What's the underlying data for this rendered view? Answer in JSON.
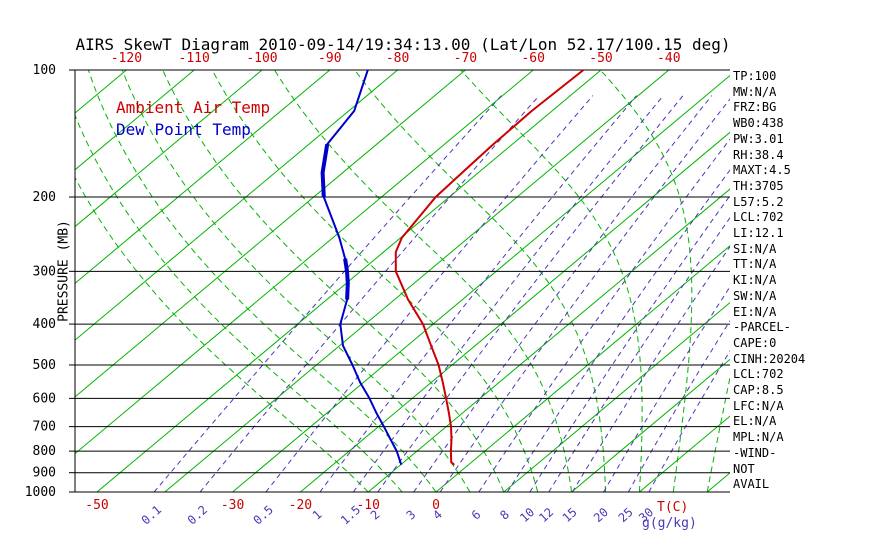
{
  "title": "AIRS SkewT Diagram 2010-09-14/19:34:13.00 (Lat/Lon 52.17/100.15 deg)",
  "legend": {
    "air": "Ambient Air Temp",
    "dew": "Dew Point Temp"
  },
  "axes": {
    "pressure_label": "PRESSURE (MB)",
    "temp_unit_label": "T(C)",
    "mixing_unit_label": "g(g/kg)"
  },
  "colors": {
    "isotherm": "#00b400",
    "moist_adiabat": "#00b400",
    "mixing_ratio": "#4b38b8",
    "temperature": "#cc0000",
    "dewpoint": "#0000cc",
    "pressure_line": "#000000"
  },
  "stats_panel": [
    "TP:100",
    "MW:N/A",
    "FRZ:BG",
    "WB0:438",
    "PW:3.01",
    "RH:38.4",
    "MAXT:4.5",
    "TH:3705",
    "L57:5.2",
    "LCL:702",
    "LI:12.1",
    "SI:N/A",
    "TT:N/A",
    "KI:N/A",
    "SW:N/A",
    "EI:N/A",
    "-PARCEL-",
    "CAPE:0",
    "CINH:20204",
    "LCL:702",
    "CAP:8.5",
    "LFC:N/A",
    "EL:N/A",
    "MPL:N/A",
    "-WIND-",
    "NOT",
    "AVAIL"
  ],
  "chart_data": {
    "type": "line",
    "subtype": "skew-t-log-p",
    "title": "AIRS SkewT Diagram 2010-09-14/19:34:13.00 (Lat/Lon 52.17/100.15 deg)",
    "xlabel": "T(C)",
    "ylabel": "PRESSURE (MB)",
    "y_scale": "log",
    "y_range_mb": [
      100,
      1000
    ],
    "pressure_ticks_mb": [
      100,
      200,
      300,
      400,
      500,
      600,
      700,
      800,
      900,
      1000
    ],
    "top_temperature_ticks_c": [
      -120,
      -110,
      -100,
      -90,
      -80,
      -70,
      -60,
      -50,
      -40
    ],
    "bottom_temperature_ticks_c": [
      -50,
      -30,
      -20,
      -10,
      0
    ],
    "isotherms_c": {
      "min": -120,
      "max": 40,
      "step": 10
    },
    "moist_adiabat_surface_temps_c": [
      -10,
      -5,
      0,
      5,
      10,
      15,
      20,
      25,
      30,
      35,
      40
    ],
    "mixing_ratio_lines_g_kg": [
      0.1,
      0.2,
      0.5,
      1,
      1.5,
      2,
      3,
      4,
      6,
      8,
      10,
      12,
      15,
      20,
      25,
      30
    ],
    "series": [
      {
        "name": "Ambient Air Temp",
        "color": "#cc0000",
        "points_p_mb_t_c": [
          [
            100,
            -52.6
          ],
          [
            125,
            -53.0
          ],
          [
            150,
            -52.8
          ],
          [
            175,
            -52.4
          ],
          [
            200,
            -52.0
          ],
          [
            250,
            -49.8
          ],
          [
            270,
            -48.2
          ],
          [
            300,
            -44.8
          ],
          [
            350,
            -38.0
          ],
          [
            400,
            -31.5
          ],
          [
            450,
            -26.5
          ],
          [
            500,
            -22.0
          ],
          [
            550,
            -18.3
          ],
          [
            600,
            -15.0
          ],
          [
            650,
            -12.0
          ],
          [
            700,
            -9.3
          ],
          [
            750,
            -7.0
          ],
          [
            800,
            -5.0
          ],
          [
            850,
            -3.0
          ],
          [
            862,
            -2.1
          ]
        ]
      },
      {
        "name": "Dew Point Temp",
        "color": "#0000cc",
        "emphasis_segments_mb": [
          [
            145,
            205
          ],
          [
            275,
            365
          ]
        ],
        "points_p_mb_t_c": [
          [
            100,
            -84.4
          ],
          [
            125,
            -79.2
          ],
          [
            150,
            -77.3
          ],
          [
            175,
            -73.0
          ],
          [
            200,
            -68.5
          ],
          [
            250,
            -59.0
          ],
          [
            280,
            -54.5
          ],
          [
            300,
            -52.0
          ],
          [
            320,
            -49.8
          ],
          [
            350,
            -47.0
          ],
          [
            400,
            -43.7
          ],
          [
            450,
            -39.5
          ],
          [
            500,
            -34.7
          ],
          [
            550,
            -30.5
          ],
          [
            600,
            -26.3
          ],
          [
            650,
            -22.7
          ],
          [
            700,
            -19.2
          ],
          [
            750,
            -16.0
          ],
          [
            800,
            -13.0
          ],
          [
            850,
            -10.5
          ],
          [
            862,
            -9.9
          ]
        ]
      }
    ]
  }
}
